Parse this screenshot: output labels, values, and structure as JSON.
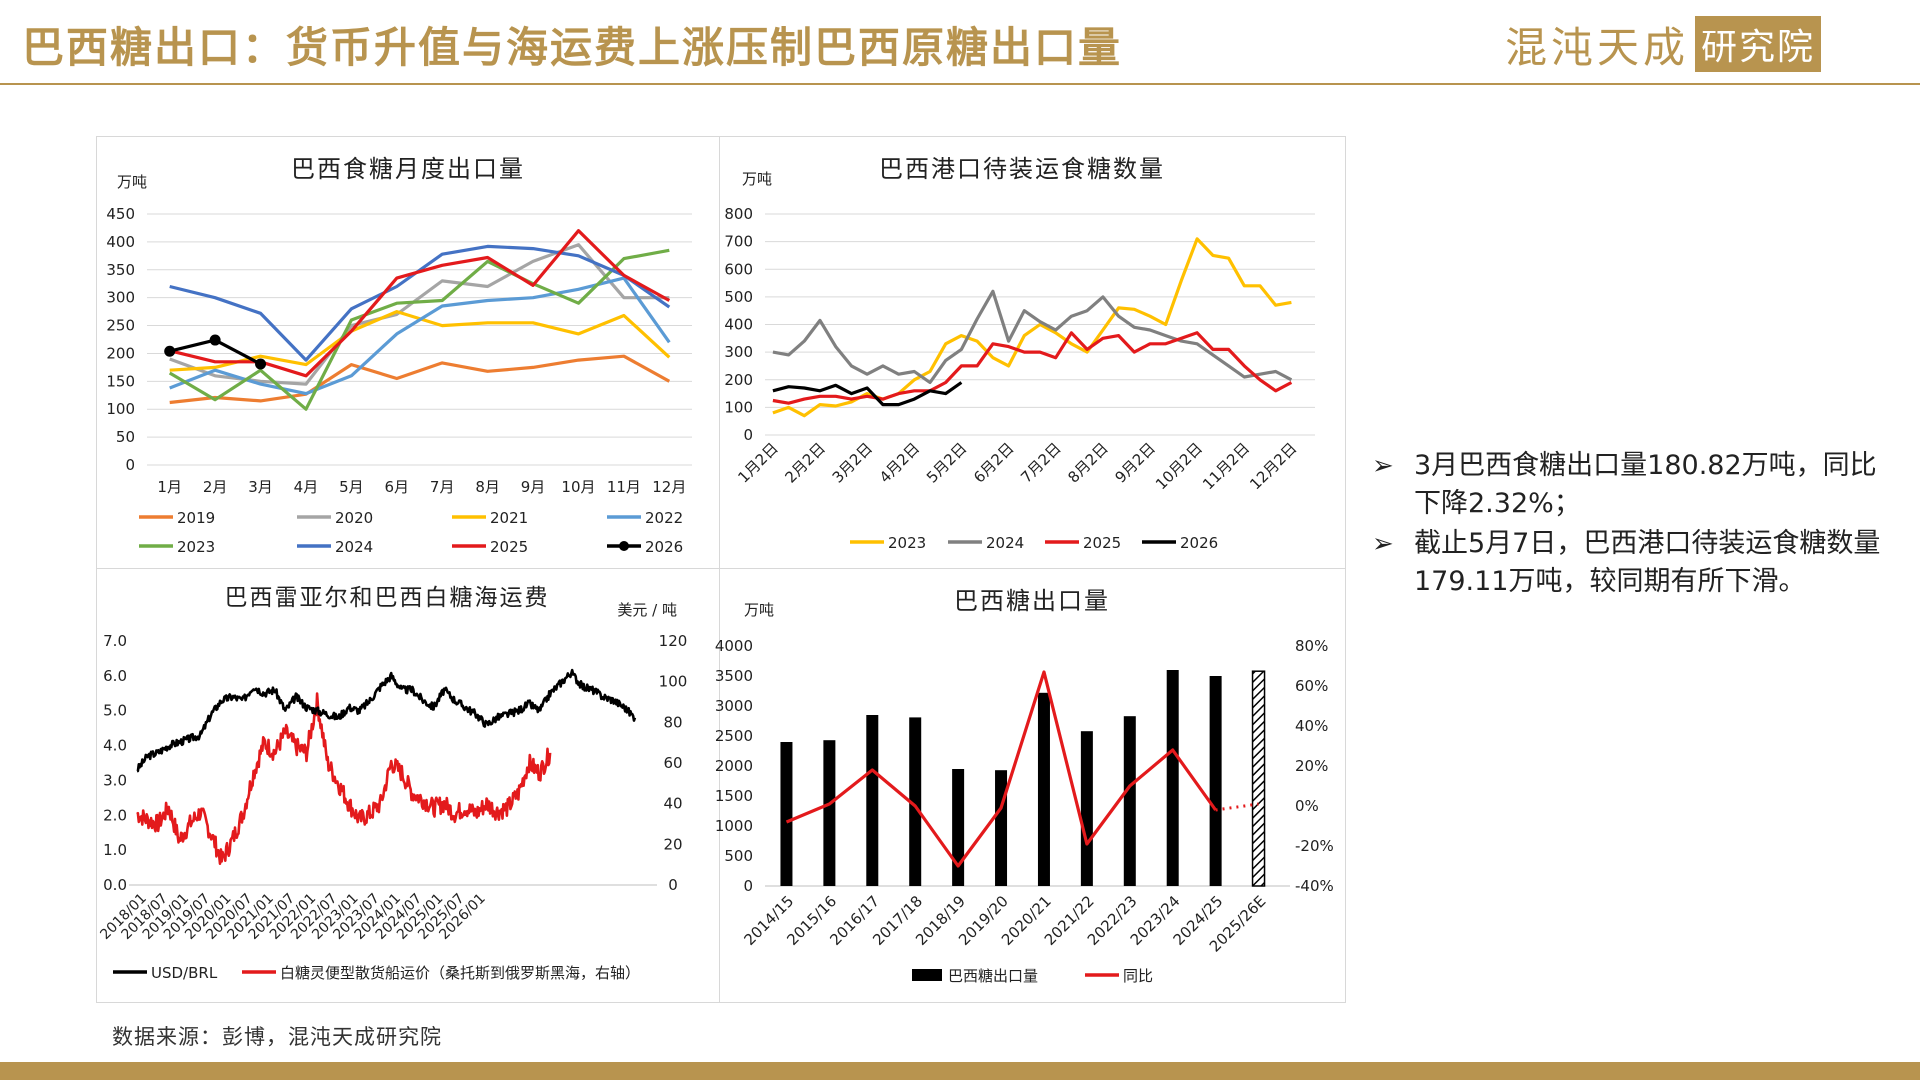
{
  "page": {
    "title": "巴西糖出口：货币升值与海运费上涨压制巴西原糖出口量",
    "logo_main": "混沌天成",
    "logo_box": "研究院",
    "source": "数据来源：彭博，混沌天成研究院",
    "accent_color": "#b8944f",
    "commentary": [
      "3月巴西食糖出口量180.82万吨，同比下降2.32%；",
      "截止5月7日，巴西港口待装运食糖数量179.11万吨，较同期有所下滑。"
    ],
    "bullet_icon": "arrow-bullet-icon"
  },
  "chart_data": [
    {
      "type": "line",
      "title": "巴西食糖月度出口量",
      "ylabel": "万吨",
      "ylim": [
        0,
        450
      ],
      "yticks": [
        0,
        50,
        100,
        150,
        200,
        250,
        300,
        350,
        400,
        450
      ],
      "categories": [
        "1月",
        "2月",
        "3月",
        "4月",
        "5月",
        "6月",
        "7月",
        "8月",
        "9月",
        "10月",
        "11月",
        "12月"
      ],
      "legend_position": "bottom",
      "series": [
        {
          "name": "2019",
          "color": "#ed7d31",
          "values": [
            112,
            121,
            115,
            127,
            180,
            155,
            183,
            168,
            175,
            188,
            195,
            150
          ]
        },
        {
          "name": "2020",
          "color": "#a5a5a5",
          "values": [
            190,
            160,
            150,
            145,
            250,
            270,
            330,
            320,
            365,
            395,
            300,
            300
          ]
        },
        {
          "name": "2021",
          "color": "#ffc000",
          "values": [
            170,
            175,
            195,
            180,
            240,
            275,
            250,
            255,
            255,
            235,
            268,
            193
          ]
        },
        {
          "name": "2022",
          "color": "#5b9bd5",
          "values": [
            138,
            170,
            145,
            128,
            160,
            235,
            285,
            295,
            300,
            315,
            335,
            220
          ]
        },
        {
          "name": "2023",
          "color": "#70ad47",
          "values": [
            165,
            117,
            170,
            100,
            260,
            290,
            295,
            365,
            325,
            290,
            370,
            385
          ]
        },
        {
          "name": "2024",
          "color": "#4472c4",
          "values": [
            320,
            300,
            272,
            188,
            280,
            320,
            378,
            392,
            388,
            375,
            340,
            283
          ]
        },
        {
          "name": "2025",
          "color": "#e31a1c",
          "values": [
            205,
            185,
            185,
            160,
            240,
            335,
            358,
            372,
            322,
            420,
            340,
            295
          ]
        },
        {
          "name": "2026",
          "color": "#000000",
          "marker": "circle",
          "values": [
            204,
            224,
            181,
            null,
            null,
            null,
            null,
            null,
            null,
            null,
            null,
            null
          ]
        }
      ]
    },
    {
      "type": "line",
      "title": "巴西港口待装运食糖数量",
      "ylabel": "万吨",
      "ylim": [
        0,
        800
      ],
      "yticks": [
        0,
        100,
        200,
        300,
        400,
        500,
        600,
        700,
        800
      ],
      "x_tick_labels": [
        "1月2日",
        "2月2日",
        "3月2日",
        "4月2日",
        "5月2日",
        "6月2日",
        "7月2日",
        "8月2日",
        "9月2日",
        "10月2日",
        "11月2日",
        "12月2日"
      ],
      "legend_position": "bottom",
      "series": [
        {
          "name": "2023",
          "color": "#ffc000",
          "values": [
            80,
            100,
            70,
            110,
            105,
            120,
            150,
            130,
            150,
            200,
            230,
            330,
            360,
            340,
            280,
            250,
            360,
            400,
            370,
            330,
            300,
            380,
            460,
            455,
            430,
            400,
            560,
            710,
            650,
            640,
            540,
            540,
            470,
            480
          ]
        },
        {
          "name": "2024",
          "color": "#808080",
          "values": [
            300,
            290,
            340,
            415,
            320,
            250,
            220,
            250,
            220,
            230,
            190,
            270,
            310,
            420,
            520,
            340,
            450,
            410,
            380,
            430,
            450,
            500,
            430,
            390,
            380,
            360,
            340,
            330,
            290,
            250,
            210,
            220,
            230,
            200
          ]
        },
        {
          "name": "2025",
          "color": "#e31a1c",
          "values": [
            125,
            115,
            130,
            140,
            140,
            130,
            140,
            130,
            150,
            160,
            160,
            190,
            250,
            250,
            330,
            320,
            300,
            300,
            280,
            370,
            310,
            350,
            360,
            300,
            330,
            330,
            350,
            370,
            310,
            310,
            250,
            200,
            160,
            190
          ]
        },
        {
          "name": "2026",
          "color": "#000000",
          "values": [
            160,
            175,
            170,
            160,
            180,
            150,
            170,
            110,
            110,
            130,
            160,
            150,
            190
          ]
        }
      ]
    },
    {
      "type": "line",
      "title": "巴西雷亚尔和巴西白糖海运费",
      "ylabel_right": "美元 / 吨",
      "ylim_left": [
        0,
        7
      ],
      "ylim_right": [
        0,
        120
      ],
      "yticks_left": [
        "0.0",
        "1.0",
        "2.0",
        "3.0",
        "4.0",
        "5.0",
        "6.0",
        "7.0"
      ],
      "yticks_right": [
        0,
        20,
        40,
        60,
        80,
        100,
        120
      ],
      "x_tick_labels": [
        "2018/01",
        "2018/07",
        "2019/01",
        "2019/07",
        "2020/01",
        "2020/07",
        "2021/01",
        "2021/07",
        "2022/01",
        "2022/07",
        "2023/01",
        "2023/07",
        "2024/01",
        "2024/07",
        "2025/01",
        "2025/07",
        "2026/01"
      ],
      "legend_position": "bottom",
      "series": [
        {
          "name": "USD/BRL",
          "axis": "left",
          "color": "#000000",
          "anchors": [
            [
              0,
              3.3
            ],
            [
              3,
              3.7
            ],
            [
              6,
              3.8
            ],
            [
              9,
              4.0
            ],
            [
              12,
              4.1
            ],
            [
              15,
              4.2
            ],
            [
              18,
              4.3
            ],
            [
              21,
              4.9
            ],
            [
              24,
              5.3
            ],
            [
              27,
              5.4
            ],
            [
              30,
              5.3
            ],
            [
              33,
              5.7
            ],
            [
              36,
              5.5
            ],
            [
              39,
              5.6
            ],
            [
              42,
              5.0
            ],
            [
              45,
              5.4
            ],
            [
              48,
              5.1
            ],
            [
              51,
              5.0
            ],
            [
              54,
              4.9
            ],
            [
              57,
              4.8
            ],
            [
              60,
              5.1
            ],
            [
              63,
              5.0
            ],
            [
              66,
              5.3
            ],
            [
              69,
              5.7
            ],
            [
              72,
              6.0
            ],
            [
              75,
              5.6
            ],
            [
              78,
              5.6
            ],
            [
              81,
              5.3
            ],
            [
              84,
              5.1
            ],
            [
              87,
              5.6
            ],
            [
              90,
              5.3
            ],
            [
              96,
              4.9
            ],
            [
              99,
              4.6
            ],
            [
              102,
              4.8
            ],
            [
              108,
              5.0
            ],
            [
              111,
              5.2
            ],
            [
              114,
              5.0
            ],
            [
              117,
              5.5
            ],
            [
              120,
              5.8
            ],
            [
              123,
              6.1
            ],
            [
              126,
              5.7
            ],
            [
              129,
              5.6
            ],
            [
              132,
              5.4
            ],
            [
              135,
              5.3
            ],
            [
              138,
              5.1
            ],
            [
              141,
              4.8
            ]
          ]
        },
        {
          "name": "白糖灵便型散货船运价（桑托斯到俄罗斯黑海，右轴）",
          "axis": "right",
          "color": "#e31a1c",
          "anchors": [
            [
              0,
              35
            ],
            [
              3,
              32
            ],
            [
              6,
              30
            ],
            [
              9,
              38
            ],
            [
              12,
              22
            ],
            [
              15,
              30
            ],
            [
              18,
              36
            ],
            [
              21,
              25
            ],
            [
              24,
              12
            ],
            [
              27,
              22
            ],
            [
              30,
              35
            ],
            [
              33,
              55
            ],
            [
              36,
              70
            ],
            [
              39,
              65
            ],
            [
              42,
              75
            ],
            [
              45,
              68
            ],
            [
              48,
              65
            ],
            [
              51,
              90
            ],
            [
              54,
              60
            ],
            [
              57,
              50
            ],
            [
              60,
              40
            ],
            [
              63,
              32
            ],
            [
              66,
              35
            ],
            [
              69,
              40
            ],
            [
              72,
              60
            ],
            [
              75,
              55
            ],
            [
              78,
              45
            ],
            [
              81,
              42
            ],
            [
              84,
              38
            ],
            [
              87,
              40
            ],
            [
              90,
              35
            ],
            [
              93,
              38
            ],
            [
              96,
              35
            ],
            [
              99,
              40
            ],
            [
              102,
              36
            ],
            [
              105,
              38
            ],
            [
              108,
              45
            ],
            [
              111,
              60
            ],
            [
              114,
              55
            ],
            [
              117,
              65
            ]
          ]
        }
      ]
    },
    {
      "type": "bar",
      "title": "巴西糖出口量",
      "ylabel": "万吨",
      "ylim": [
        0,
        4000
      ],
      "yticks": [
        0,
        500,
        1000,
        1500,
        2000,
        2500,
        3000,
        3500,
        4000
      ],
      "ylim_right": [
        -40,
        80
      ],
      "yticks_right": [
        "-40%",
        "-20%",
        "0%",
        "20%",
        "40%",
        "60%",
        "80%"
      ],
      "categories": [
        "2014/15",
        "2015/16",
        "2016/17",
        "2017/18",
        "2018/19",
        "2019/20",
        "2020/21",
        "2021/22",
        "2022/23",
        "2023/24",
        "2024/25",
        "2025/26E"
      ],
      "legend_position": "bottom",
      "series": [
        {
          "name": "巴西糖出口量",
          "type": "bar",
          "color": "#000000",
          "values": [
            2400,
            2430,
            2850,
            2810,
            1950,
            1930,
            3220,
            2580,
            2830,
            3600,
            3500,
            3580
          ],
          "hatched_last": true
        },
        {
          "name": "同比",
          "type": "line",
          "axis": "right",
          "color": "#e31a1c",
          "values": [
            -8,
            1,
            18,
            0,
            -30,
            -1,
            67,
            -19,
            10,
            28,
            -2,
            1
          ],
          "dotted_last": true
        }
      ]
    }
  ]
}
